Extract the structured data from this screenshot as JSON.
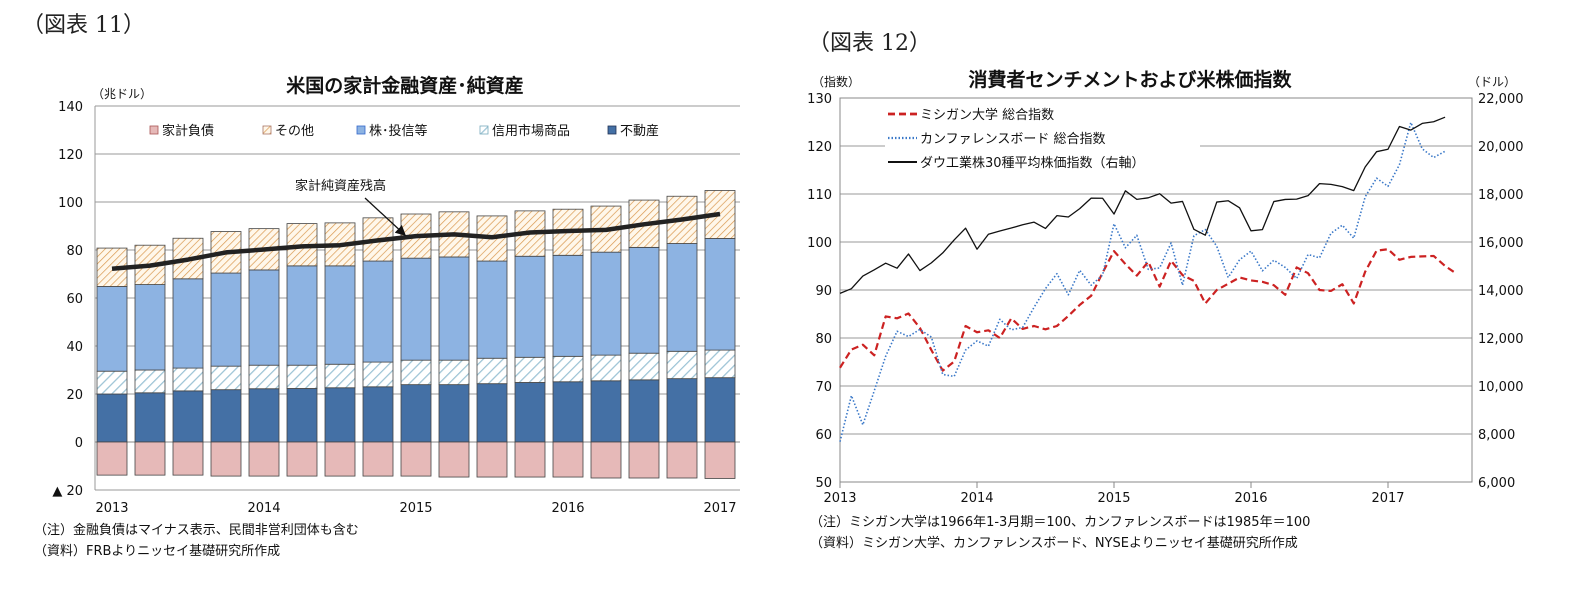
{
  "figures": [
    {
      "label": "（図表 11）"
    },
    {
      "label": "（図表 12）"
    }
  ],
  "chart_data": [
    {
      "type": "bar",
      "stacked": true,
      "title": "米国の家計金融資産･純資産",
      "ylabel": "（兆ドル）",
      "ylim": [
        -20,
        140
      ],
      "yticks": [
        140,
        120,
        100,
        80,
        60,
        40,
        20,
        0,
        -20
      ],
      "ytick_labels": [
        "140",
        "120",
        "100",
        "80",
        "60",
        "40",
        "20",
        "0",
        "▲ 20"
      ],
      "categories": [
        "2013Q1",
        "2013Q2",
        "2013Q3",
        "2013Q4",
        "2014Q1",
        "2014Q2",
        "2014Q3",
        "2014Q4",
        "2015Q1",
        "2015Q2",
        "2015Q3",
        "2015Q4",
        "2016Q1",
        "2016Q2",
        "2016Q3",
        "2016Q4",
        "2017Q1"
      ],
      "xtick_labels": [
        {
          "index": 0,
          "label": "2013"
        },
        {
          "index": 4,
          "label": "2014"
        },
        {
          "index": 8,
          "label": "2015"
        },
        {
          "index": 12,
          "label": "2016"
        },
        {
          "index": 16,
          "label": "2017"
        }
      ],
      "grid": true,
      "legend_placement": "top",
      "series": [
        {
          "name": "家計負債",
          "color": "#e6b9b8",
          "pattern": "solid",
          "values": [
            -13.8,
            -13.8,
            -13.8,
            -14.2,
            -14.2,
            -14.2,
            -14.2,
            -14.2,
            -14.2,
            -14.6,
            -14.6,
            -14.6,
            -14.6,
            -15.0,
            -15.0,
            -15.0,
            -15.2
          ]
        },
        {
          "name": "その他",
          "color": "#e0a060",
          "pattern": "hatch",
          "values": [
            16.0,
            16.4,
            16.9,
            17.3,
            17.2,
            17.6,
            17.9,
            18.0,
            18.4,
            18.8,
            18.8,
            18.9,
            19.2,
            19.2,
            19.7,
            19.7,
            20.0
          ]
        },
        {
          "name": "株･投信等",
          "color": "#8db3e2",
          "pattern": "solid",
          "values": [
            35.3,
            35.6,
            37.2,
            38.8,
            39.7,
            41.4,
            41.0,
            42.1,
            42.5,
            43.0,
            40.5,
            42.1,
            42.1,
            42.9,
            44.1,
            44.9,
            46.5
          ]
        },
        {
          "name": "信用市場商品",
          "color": "#9cc3d5",
          "pattern": "hatch",
          "values": [
            9.5,
            9.5,
            9.5,
            9.8,
            9.8,
            9.7,
            9.8,
            10.3,
            10.2,
            10.2,
            10.6,
            10.5,
            10.6,
            10.7,
            11.1,
            11.4,
            11.5
          ]
        },
        {
          "name": "不動産",
          "color": "#4470a5",
          "pattern": "solid",
          "values": [
            20.0,
            20.5,
            21.3,
            21.8,
            22.2,
            22.3,
            22.6,
            23.0,
            23.9,
            23.9,
            24.3,
            24.8,
            25.1,
            25.5,
            25.9,
            26.4,
            26.8
          ]
        }
      ],
      "line": {
        "name": "家計純資産残高",
        "color": "#222222",
        "values": [
          72.2,
          73.5,
          76.0,
          79.0,
          80.2,
          81.5,
          82.0,
          84.0,
          85.8,
          86.5,
          85.3,
          87.3,
          87.9,
          88.4,
          90.7,
          92.7,
          95.0
        ]
      },
      "annotation": "家計純資産残高",
      "notes": [
        "（注）金融負債はマイナス表示、民間非営利団体も含む",
        "（資料）FRBよりニッセイ基礎研究所作成"
      ]
    },
    {
      "type": "line",
      "title": "消費者センチメントおよび米株価指数",
      "ylabel": "（指数）",
      "y2label": "（ドル）",
      "ylim": [
        50,
        130
      ],
      "y2lim": [
        6000,
        22000
      ],
      "yticks": [
        "130",
        "120",
        "110",
        "100",
        "90",
        "80",
        "70",
        "60",
        "50"
      ],
      "y2ticks": [
        "22,000",
        "20,000",
        "18,000",
        "16,000",
        "14,000",
        "12,000",
        "10,000",
        "8,000",
        "6,000"
      ],
      "x_start": "2013-01",
      "xtick_labels": [
        "2013",
        "2014",
        "2015",
        "2016",
        "2017"
      ],
      "grid": true,
      "legend_placement": "top-left",
      "series": [
        {
          "name": "ミシガン大学 総合指数",
          "color": "#cc2222",
          "style": "dashed",
          "axis": "left",
          "values": [
            73.8,
            77.6,
            78.6,
            76.4,
            84.5,
            84.1,
            85.1,
            82.1,
            77.5,
            73.2,
            75.1,
            82.5,
            81.2,
            81.6,
            80.0,
            84.1,
            81.9,
            82.5,
            81.8,
            82.5,
            84.6,
            86.9,
            88.8,
            93.6,
            98.1,
            95.4,
            93.0,
            95.9,
            90.7,
            96.1,
            93.1,
            91.9,
            87.2,
            90.0,
            91.3,
            92.6,
            92.0,
            91.7,
            91.0,
            89.0,
            94.7,
            93.5,
            90.0,
            89.8,
            91.2,
            87.2,
            93.8,
            98.2,
            98.5,
            96.3,
            96.9,
            97.0,
            97.1,
            95.0,
            93.4
          ]
        },
        {
          "name": "カンファレンスボード 総合指数",
          "color": "#3a78c8",
          "style": "dotted",
          "axis": "left",
          "values": [
            58.4,
            68.0,
            61.9,
            69.0,
            76.2,
            81.4,
            80.3,
            81.8,
            80.2,
            72.4,
            72.0,
            77.5,
            79.4,
            78.3,
            83.9,
            81.7,
            82.2,
            86.4,
            90.3,
            93.4,
            89.0,
            94.1,
            91.0,
            93.1,
            103.8,
            98.8,
            101.4,
            94.3,
            94.6,
            99.8,
            91.0,
            101.3,
            102.6,
            99.1,
            92.6,
            96.3,
            98.1,
            94.0,
            96.2,
            94.7,
            92.4,
            97.4,
            96.7,
            101.8,
            103.5,
            100.8,
            109.4,
            113.3,
            111.6,
            116.1,
            124.9,
            119.4,
            117.6,
            118.9
          ]
        },
        {
          "name": "ダウ工業株30種平均株価指数（右軸）",
          "color": "#111111",
          "style": "solid",
          "axis": "right",
          "values": [
            13861,
            14054,
            14579,
            14840,
            15116,
            14910,
            15500,
            14810,
            15130,
            15546,
            16086,
            16577,
            15699,
            16322,
            16458,
            16581,
            16717,
            16827,
            16563,
            17098,
            17043,
            17391,
            17828,
            17823,
            17165,
            18133,
            17776,
            17841,
            18011,
            17620,
            17690,
            16528,
            16285,
            17664,
            17720,
            17425,
            16466,
            16517,
            17685,
            17774,
            17787,
            17930,
            18432,
            18401,
            18308,
            18142,
            19124,
            19763,
            19864,
            20812,
            20663,
            20941,
            21009,
            21200
          ]
        }
      ],
      "notes": [
        "（注）ミシガン大学は1966年1-3月期＝100、カンファレンスボードは1985年＝100",
        "（資料）ミシガン大学、カンファレンスボード、NYSEよりニッセイ基礎研究所作成"
      ]
    }
  ]
}
